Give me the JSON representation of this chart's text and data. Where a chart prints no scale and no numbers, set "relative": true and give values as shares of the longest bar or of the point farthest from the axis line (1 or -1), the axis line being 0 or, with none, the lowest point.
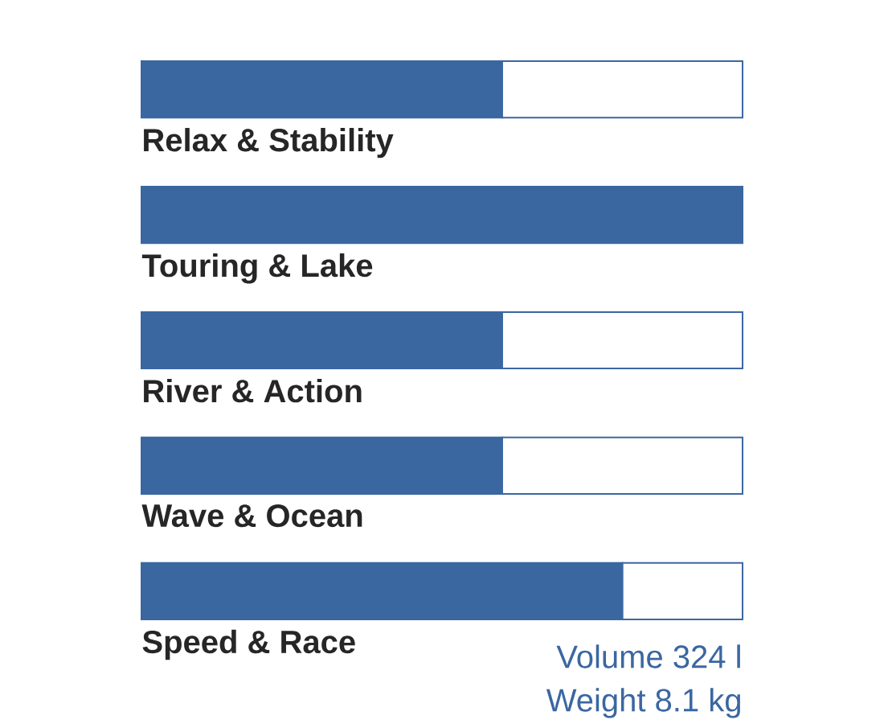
{
  "chart_data": {
    "type": "bar",
    "orientation": "horizontal",
    "stacked": true,
    "relative": true,
    "categories": [
      "Relax & Stability",
      "Touring & Lake",
      "River & Action",
      "Wave & Ocean",
      "Speed & Race"
    ],
    "series": [
      {
        "color": "#3b67a1",
        "values": [
          0.6,
          1,
          0.6,
          0.6,
          0.8
        ]
      },
      {
        "color": "#ffffff",
        "values": [
          0.4,
          0,
          0.4,
          0.4,
          0.2
        ]
      }
    ],
    "annotations": [
      "Volume 324 l",
      "Weight 8.1 kg"
    ]
  }
}
